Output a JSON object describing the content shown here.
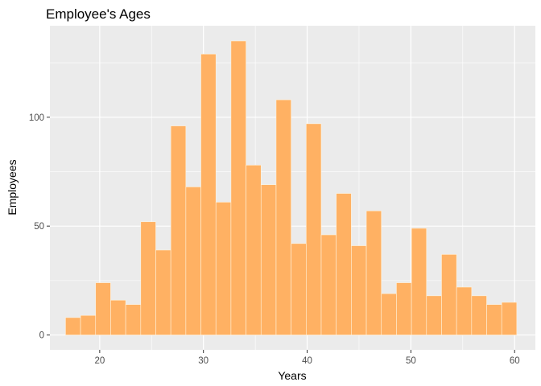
{
  "chart_data": {
    "type": "bar",
    "title": "Employee's Ages",
    "xlabel": "Years",
    "ylabel": "Employees",
    "xlim": [
      15.2,
      62.0
    ],
    "ylim": [
      -6.8,
      142
    ],
    "x_ticks": [
      20,
      30,
      40,
      50,
      60
    ],
    "y_ticks": [
      0,
      50,
      100
    ],
    "grid": true,
    "legend": "none",
    "colors": {
      "panel": "#ebebeb",
      "bar_fill": "#ffb163",
      "bar_outline": "#fff3dd",
      "grid": "#ffffff",
      "tick": "#333333"
    },
    "bins": [
      {
        "x": 17.43,
        "count": 8
      },
      {
        "x": 18.88,
        "count": 9
      },
      {
        "x": 20.33,
        "count": 24
      },
      {
        "x": 21.78,
        "count": 16
      },
      {
        "x": 23.23,
        "count": 14
      },
      {
        "x": 24.68,
        "count": 52
      },
      {
        "x": 26.13,
        "count": 39
      },
      {
        "x": 27.58,
        "count": 96
      },
      {
        "x": 29.03,
        "count": 68
      },
      {
        "x": 30.48,
        "count": 129
      },
      {
        "x": 31.93,
        "count": 61
      },
      {
        "x": 33.38,
        "count": 135
      },
      {
        "x": 34.83,
        "count": 78
      },
      {
        "x": 36.28,
        "count": 69
      },
      {
        "x": 37.73,
        "count": 108
      },
      {
        "x": 39.18,
        "count": 42
      },
      {
        "x": 40.63,
        "count": 97
      },
      {
        "x": 42.08,
        "count": 46
      },
      {
        "x": 43.53,
        "count": 65
      },
      {
        "x": 44.98,
        "count": 41
      },
      {
        "x": 46.43,
        "count": 57
      },
      {
        "x": 47.88,
        "count": 19
      },
      {
        "x": 49.33,
        "count": 24
      },
      {
        "x": 50.78,
        "count": 49
      },
      {
        "x": 52.23,
        "count": 18
      },
      {
        "x": 53.68,
        "count": 37
      },
      {
        "x": 55.13,
        "count": 22
      },
      {
        "x": 56.58,
        "count": 18
      },
      {
        "x": 58.03,
        "count": 14
      },
      {
        "x": 59.48,
        "count": 15
      }
    ],
    "bin_width": 1.45
  }
}
